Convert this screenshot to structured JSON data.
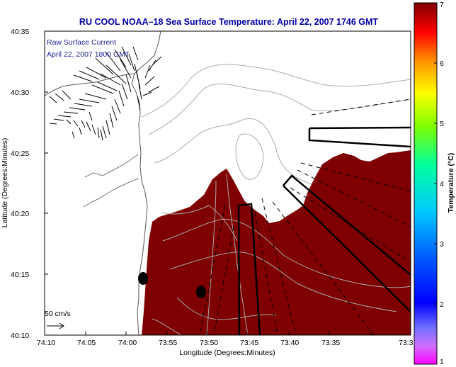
{
  "title": "RU COOL  NOAA–18  Sea Surface Temperature:  April 22, 2007 1746 GMT",
  "inset": {
    "line1": "Raw Surface Current",
    "line2": "April 22, 2007 1800 GMT"
  },
  "scale_label": "50 cm/s",
  "x_axis": {
    "label": "Longitude (Degrees:Minutes)",
    "ticks": [
      "74:10",
      "74:05",
      "74:00",
      "73:55",
      "73:50",
      "73:45",
      "73:40",
      "73:35",
      "73:3"
    ]
  },
  "y_axis": {
    "label": "Latitude (Degrees:Minutes)",
    "ticks": [
      "40:35",
      "40:30",
      "40:25",
      "40:20",
      "40:15",
      "40:10"
    ]
  },
  "colorbar": {
    "label": "Temperature (°C)",
    "ticks": [
      "7",
      "6",
      "5",
      "4",
      "3",
      "2",
      "1"
    ],
    "range": [
      1,
      7
    ]
  },
  "colors": {
    "sst_fill": "#7f0000",
    "title_text": "#0000a8",
    "land": "#ffffff",
    "contour": "#aaaaaa"
  }
}
